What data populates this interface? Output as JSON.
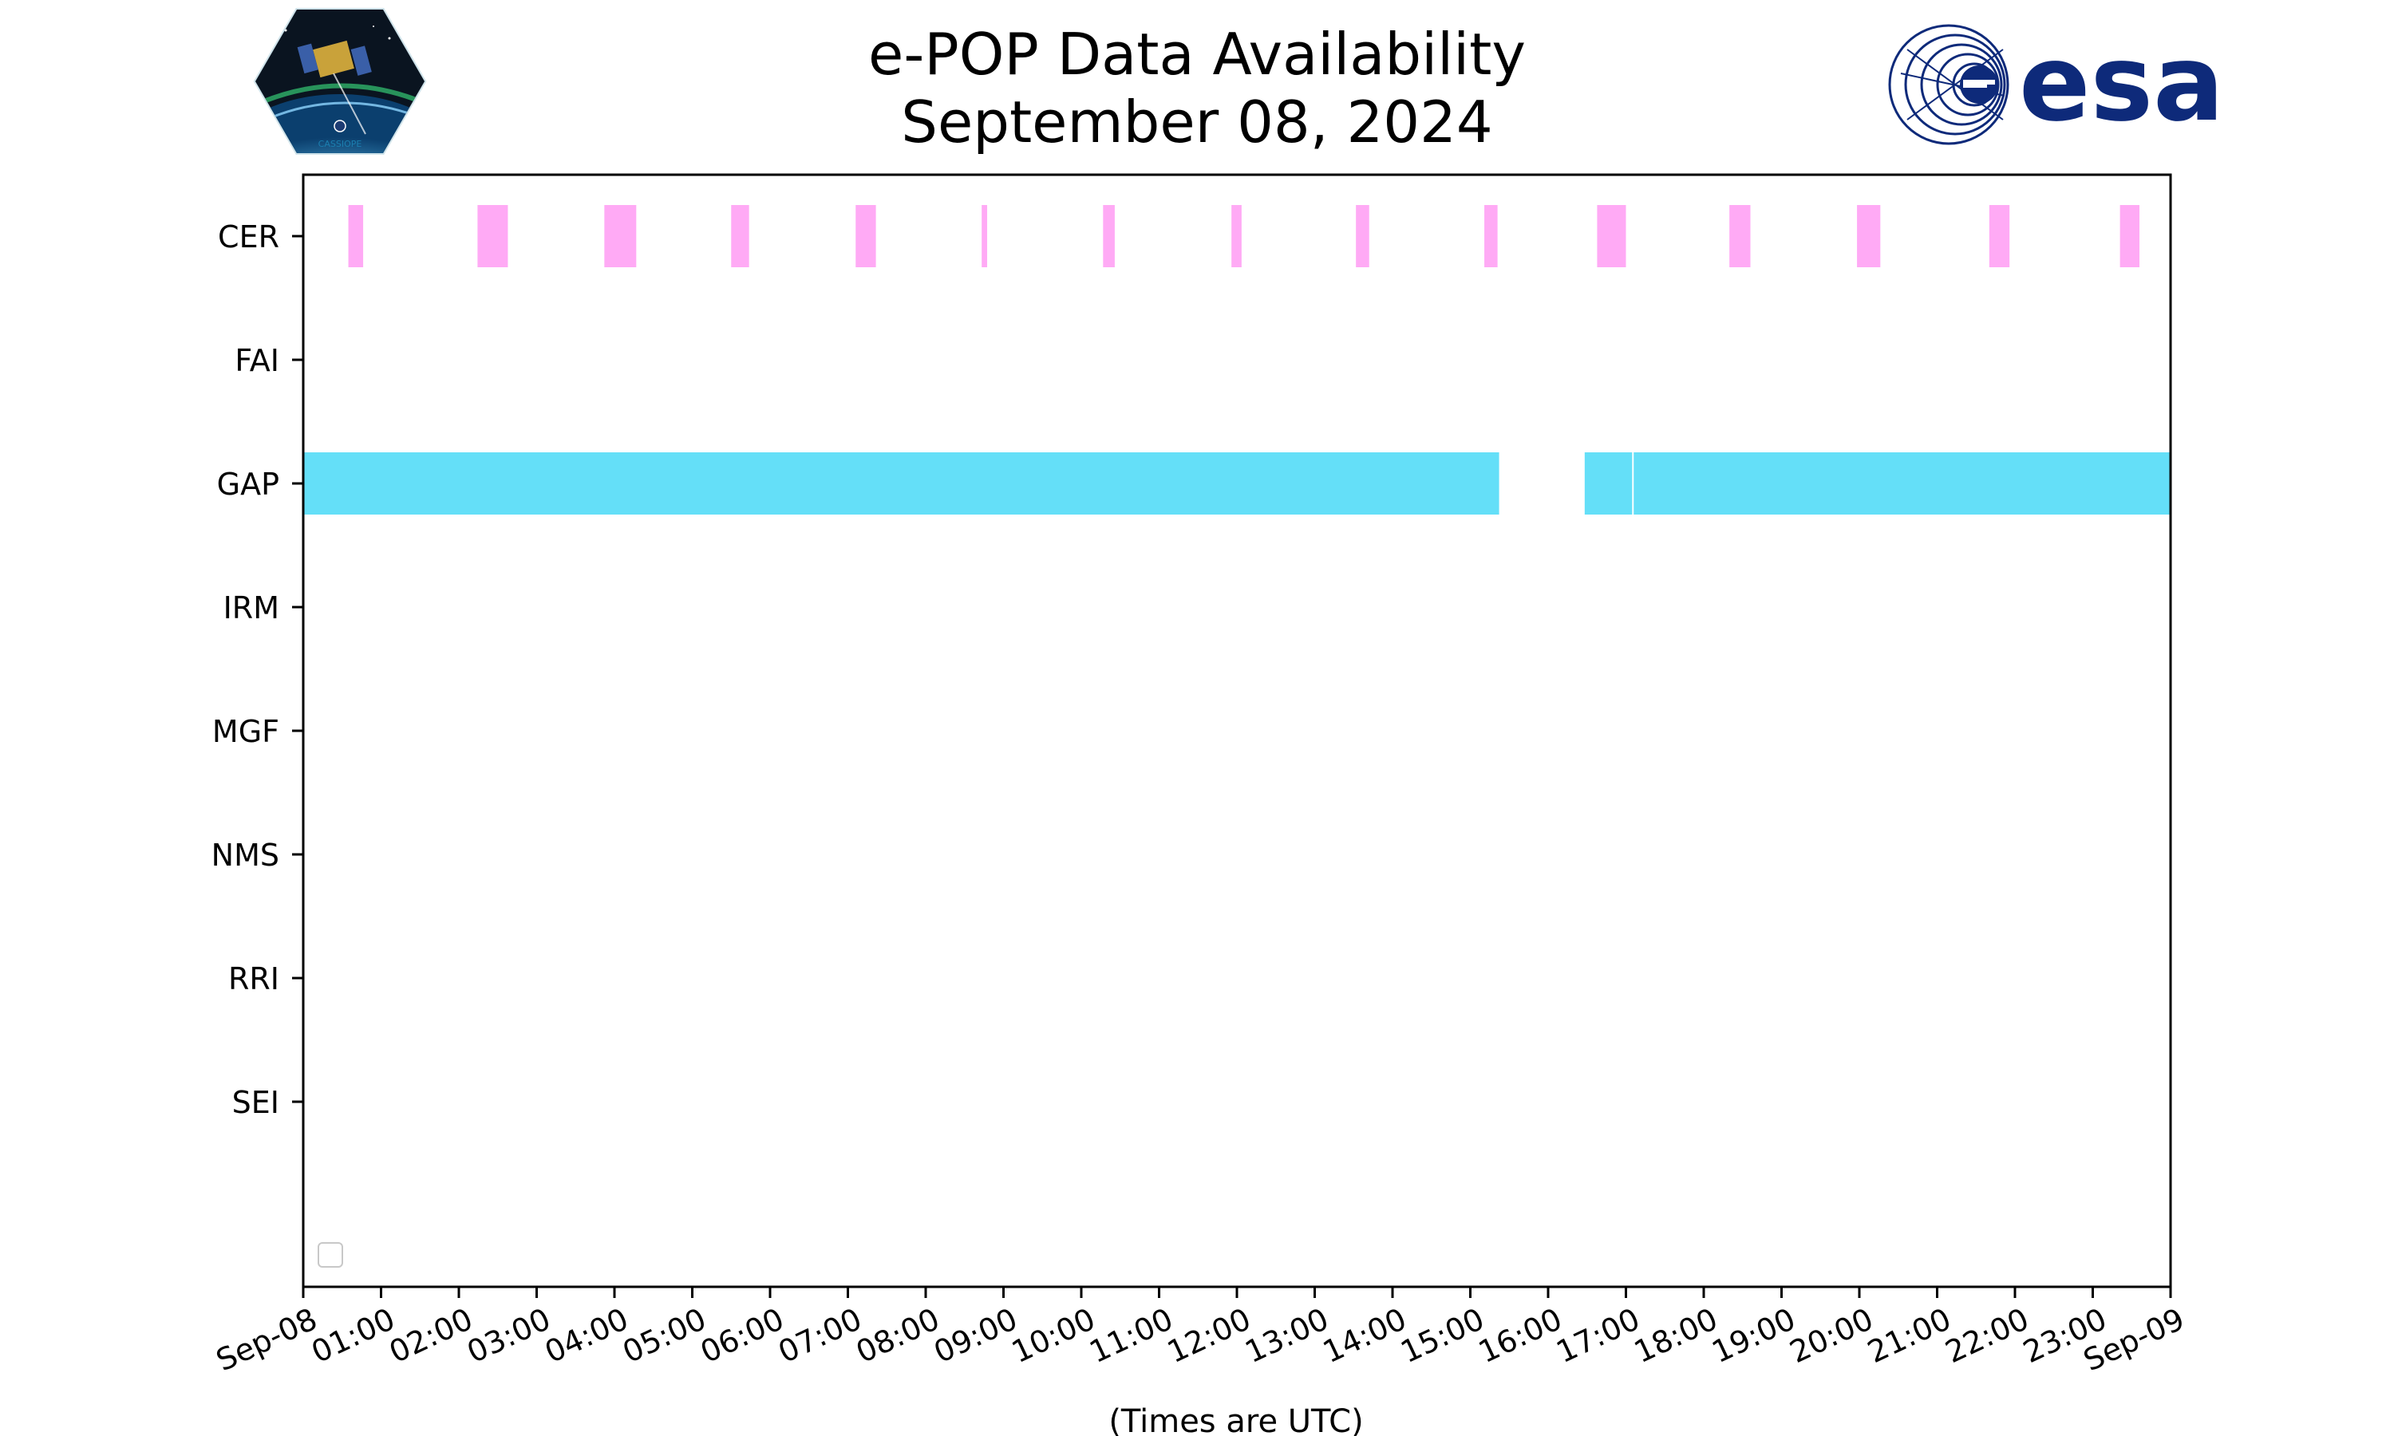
{
  "logos": {
    "left_icon": "cassiope-hexagon-logo",
    "left_text": "CASSIOPE",
    "right_icon": "esa-logo",
    "right_text": "esa",
    "esa_color": "#0e2a7a"
  },
  "legend_icon": "empty-legend-box",
  "chart_data": {
    "type": "timeline",
    "title": "e-POP Data Availability",
    "subtitle": "September 08, 2024",
    "xlabel": "(Times are UTC)",
    "xlim_hours": [
      0,
      24
    ],
    "x_ticks": [
      "Sep-08",
      "01:00",
      "02:00",
      "03:00",
      "04:00",
      "05:00",
      "06:00",
      "07:00",
      "08:00",
      "09:00",
      "10:00",
      "11:00",
      "12:00",
      "13:00",
      "14:00",
      "15:00",
      "16:00",
      "17:00",
      "18:00",
      "19:00",
      "20:00",
      "21:00",
      "22:00",
      "23:00",
      "Sep-09"
    ],
    "categories": [
      "CER",
      "FAI",
      "GAP",
      "IRM",
      "MGF",
      "NMS",
      "RRI",
      "SEI"
    ],
    "colors": {
      "CER": "#ffaaf5",
      "GAP": "#64dff8"
    },
    "segments": {
      "CER": [
        [
          0.58,
          0.77
        ],
        [
          2.24,
          2.63
        ],
        [
          3.87,
          4.28
        ],
        [
          5.5,
          5.73
        ],
        [
          7.1,
          7.36
        ],
        [
          8.72,
          8.79
        ],
        [
          10.28,
          10.43
        ],
        [
          11.93,
          12.06
        ],
        [
          13.53,
          13.7
        ],
        [
          15.18,
          15.35
        ],
        [
          16.63,
          17.0
        ],
        [
          18.33,
          18.6
        ],
        [
          19.97,
          20.27
        ],
        [
          21.67,
          21.93
        ],
        [
          23.35,
          23.6
        ]
      ],
      "GAP": [
        [
          0.0,
          15.37
        ],
        [
          16.47,
          17.08
        ],
        [
          17.1,
          24.0
        ]
      ]
    },
    "grid": false,
    "legend": "lower-left, empty"
  }
}
